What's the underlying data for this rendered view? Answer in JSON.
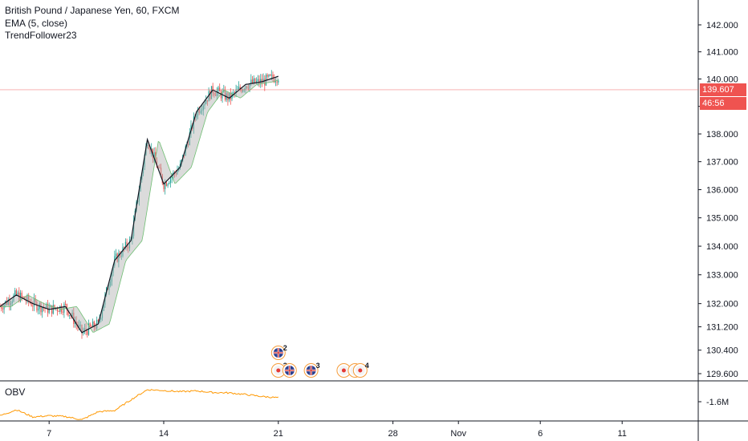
{
  "legend": {
    "title": "British Pound / Japanese Yen, 60, FXCM",
    "indicator1": "EMA (5, close)",
    "indicator2": "TrendFollower23"
  },
  "price_tag": {
    "value": "139.607",
    "countdown": "46:56",
    "color": "#ef5350"
  },
  "obv": {
    "label": "OBV",
    "axis_label": "-1.6M",
    "color": "#ff9800"
  },
  "colors": {
    "up": "#26a69a",
    "down": "#ef5350",
    "ema": "#131722",
    "cloud": "#b0b0b0",
    "event_border": "#f59c3b"
  },
  "events": [
    {
      "date": "2019-10-21",
      "row": "upper",
      "icon": "uk-flag-icon",
      "count": "2"
    },
    {
      "date": "2019-10-21",
      "row": "lower",
      "icon": "red-dot-icon",
      "count": "3"
    },
    {
      "date": "2019-10-21",
      "row": "lower",
      "icon": "uk-flag-icon",
      "count": ""
    },
    {
      "date": "2019-10-23",
      "row": "lower",
      "icon": "uk-flag-icon",
      "count": "3"
    },
    {
      "date": "2019-10-25",
      "row": "lower",
      "icon": "red-dot-icon",
      "count": ""
    },
    {
      "date": "2019-10-25",
      "row": "lower",
      "icon": "red-dot-icon",
      "count": ""
    },
    {
      "date": "2019-10-26",
      "row": "lower",
      "icon": "red-dot-icon",
      "count": "4"
    }
  ],
  "chart_data": {
    "type": "line",
    "title": "British Pound / Japanese Yen, 60, FXCM",
    "x_axis": {
      "type": "date",
      "ticks": [
        "7",
        "14",
        "21",
        "28",
        "Nov",
        "6",
        "11"
      ],
      "tick_dates": [
        "2019-10-07",
        "2019-10-14",
        "2019-10-21",
        "2019-10-28",
        "2019-11-01",
        "2019-11-06",
        "2019-11-11"
      ],
      "range": [
        "2019-10-04",
        "2019-11-14"
      ]
    },
    "y_axis": {
      "ticks": [
        "142.000",
        "141.000",
        "140.000",
        "139.000",
        "138.000",
        "137.000",
        "136.000",
        "135.000",
        "134.000",
        "133.000",
        "132.000",
        "131.200",
        "130.400",
        "129.600"
      ],
      "scale": "log",
      "range": [
        129.4,
        142.6
      ]
    },
    "last_price": 139.607,
    "grid": false,
    "series": [
      {
        "name": "EMA (5, close)",
        "x": [
          "2019-10-04",
          "2019-10-05",
          "2019-10-06",
          "2019-10-07",
          "2019-10-08",
          "2019-10-09",
          "2019-10-10",
          "2019-10-11",
          "2019-10-12",
          "2019-10-13",
          "2019-10-14",
          "2019-10-15",
          "2019-10-16",
          "2019-10-17",
          "2019-10-18",
          "2019-10-19",
          "2019-10-20",
          "2019-10-21"
        ],
        "values": [
          131.9,
          132.3,
          132.0,
          131.8,
          131.9,
          131.0,
          131.3,
          133.5,
          134.2,
          137.8,
          136.2,
          136.8,
          138.8,
          139.6,
          139.3,
          139.8,
          139.9,
          140.1
        ]
      },
      {
        "name": "OBV",
        "x": [
          "2019-10-04",
          "2019-10-05",
          "2019-10-06",
          "2019-10-07",
          "2019-10-08",
          "2019-10-09",
          "2019-10-10",
          "2019-10-11",
          "2019-10-12",
          "2019-10-13",
          "2019-10-14",
          "2019-10-15",
          "2019-10-16",
          "2019-10-17",
          "2019-10-18",
          "2019-10-19",
          "2019-10-20",
          "2019-10-21"
        ],
        "values": [
          -1.95,
          -1.8,
          -1.98,
          -1.95,
          -1.97,
          -2.05,
          -1.85,
          -1.82,
          -1.55,
          -1.3,
          -1.32,
          -1.35,
          -1.33,
          -1.37,
          -1.38,
          -1.42,
          -1.47,
          -1.5
        ]
      }
    ]
  }
}
